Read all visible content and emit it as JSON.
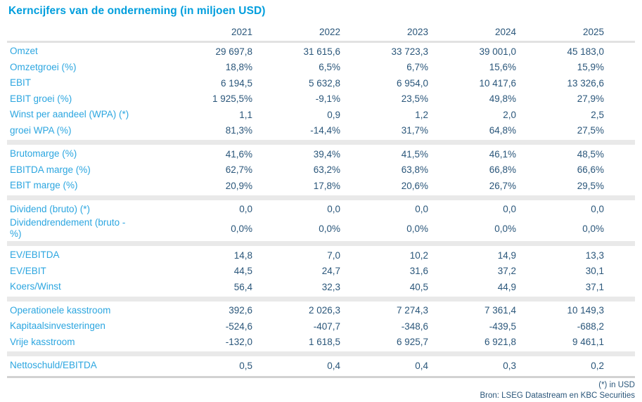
{
  "title": "Kerncijfers van de onderneming (in miljoen USD)",
  "colors": {
    "title_accent": "#009EDD",
    "row_label_accent": "#2CA6E0",
    "value_navy": "#2A567A",
    "divider_band": "#E9E9E9"
  },
  "chart_data": {
    "type": "table",
    "title": "Kerncijfers van de onderneming (in miljoen USD)",
    "columns": [
      "",
      "2021",
      "2022",
      "2023",
      "2024",
      "2025"
    ],
    "sections": [
      {
        "rows": [
          {
            "label": "Omzet",
            "values": [
              "29 697,8",
              "31 615,6",
              "33 723,3",
              "39 001,0",
              "45 183,0"
            ]
          },
          {
            "label": "Omzetgroei (%)",
            "values": [
              "18,8%",
              "6,5%",
              "6,7%",
              "15,6%",
              "15,9%"
            ]
          },
          {
            "label": "EBIT",
            "values": [
              "6 194,5",
              "5 632,8",
              "6 954,0",
              "10 417,6",
              "13 326,6"
            ]
          },
          {
            "label": "EBIT groei (%)",
            "values": [
              "1 925,5%",
              "-9,1%",
              "23,5%",
              "49,8%",
              "27,9%"
            ]
          },
          {
            "label": "Winst per aandeel (WPA) (*)",
            "values": [
              "1,1",
              "0,9",
              "1,2",
              "2,0",
              "2,5"
            ]
          },
          {
            "label": "groei WPA (%)",
            "values": [
              "81,3%",
              "-14,4%",
              "31,7%",
              "64,8%",
              "27,5%"
            ]
          }
        ]
      },
      {
        "rows": [
          {
            "label": "Brutomarge (%)",
            "values": [
              "41,6%",
              "39,4%",
              "41,5%",
              "46,1%",
              "48,5%"
            ]
          },
          {
            "label": "EBITDA marge (%)",
            "values": [
              "62,7%",
              "63,2%",
              "63,8%",
              "66,8%",
              "66,6%"
            ]
          },
          {
            "label": "EBIT marge (%)",
            "values": [
              "20,9%",
              "17,8%",
              "20,6%",
              "26,7%",
              "29,5%"
            ]
          }
        ]
      },
      {
        "rows": [
          {
            "label": "Dividend (bruto) (*)",
            "values": [
              "0,0",
              "0,0",
              "0,0",
              "0,0",
              "0,0"
            ]
          },
          {
            "label": "Dividendrendement (bruto - %)",
            "label_lines": [
              "Dividendrendement (bruto -",
              "%)"
            ],
            "values": [
              "0,0%",
              "0,0%",
              "0,0%",
              "0,0%",
              "0,0%"
            ]
          }
        ]
      },
      {
        "rows": [
          {
            "label": "EV/EBITDA",
            "values": [
              "14,8",
              "7,0",
              "10,2",
              "14,9",
              "13,3"
            ]
          },
          {
            "label": "EV/EBIT",
            "values": [
              "44,5",
              "24,7",
              "31,6",
              "37,2",
              "30,1"
            ]
          },
          {
            "label": "Koers/Winst",
            "values": [
              "56,4",
              "32,3",
              "40,5",
              "44,9",
              "37,1"
            ]
          }
        ]
      },
      {
        "rows": [
          {
            "label": "Operationele kasstroom",
            "values": [
              "392,6",
              "2 026,3",
              "7 274,3",
              "7 361,4",
              "10 149,3"
            ]
          },
          {
            "label": "Kapitaalsinvesteringen",
            "values": [
              "-524,6",
              "-407,7",
              "-348,6",
              "-439,5",
              "-688,2"
            ]
          },
          {
            "label": "Vrije kasstroom",
            "values": [
              "-132,0",
              "1 618,5",
              "6 925,7",
              "6 921,8",
              "9 461,1"
            ]
          }
        ]
      },
      {
        "rows": [
          {
            "label": "Nettoschuld/EBITDA",
            "values": [
              "0,5",
              "0,4",
              "0,4",
              "0,3",
              "0,2"
            ]
          }
        ]
      }
    ]
  },
  "footer": {
    "note": "(*) in USD",
    "source": "Bron: LSEG Datastream en KBC Securities"
  }
}
